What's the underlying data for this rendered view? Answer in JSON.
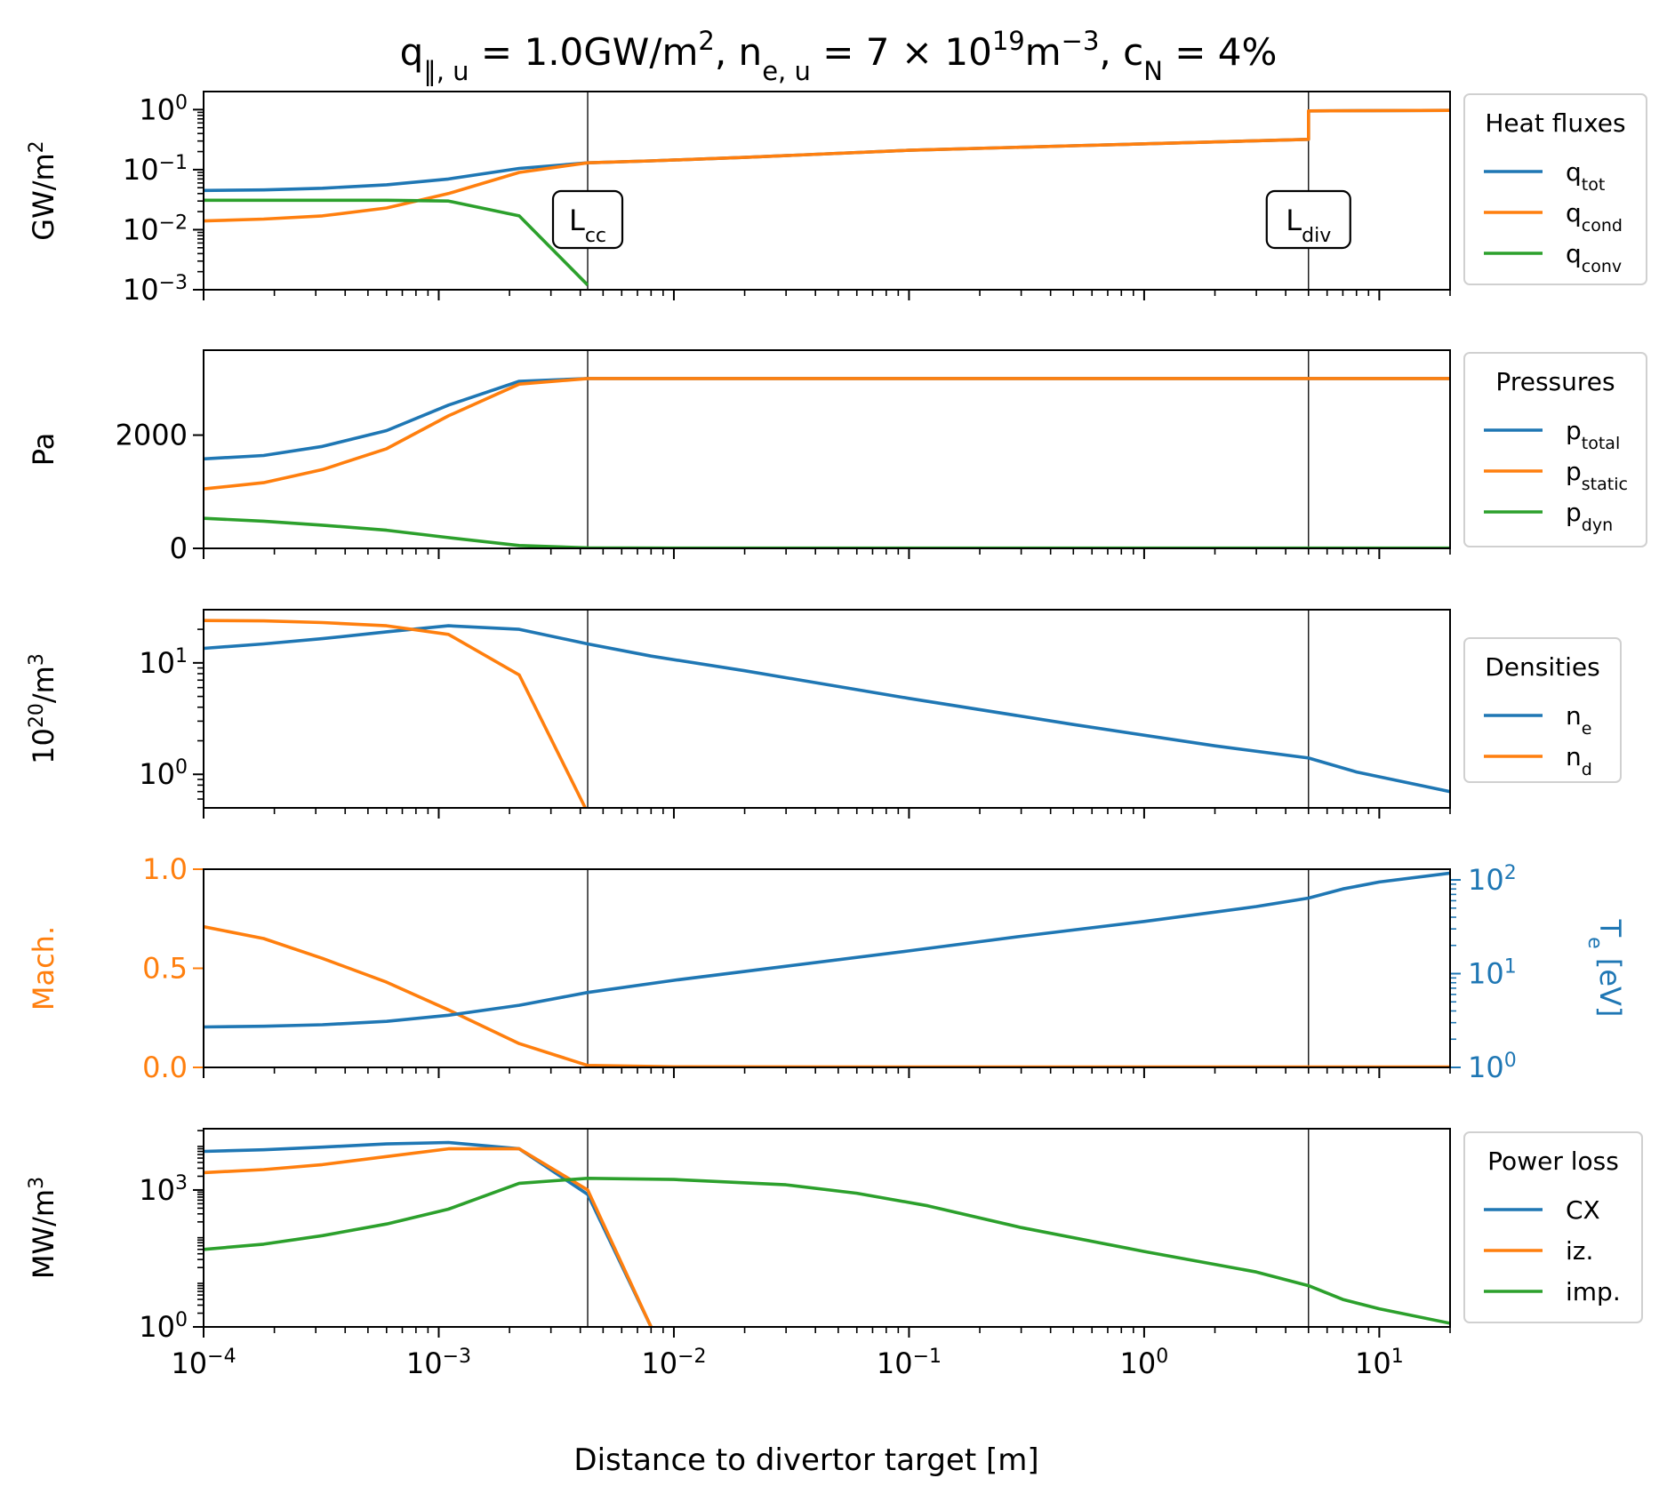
{
  "figure": {
    "title": "q‖,u = 1.0GW/m², ne,u = 7 × 10¹⁹m⁻³, cN = 4%",
    "title_parts": [
      {
        "t": "q"
      },
      {
        "t": "‖, u",
        "sub": true
      },
      {
        "t": " = 1.0GW/m"
      },
      {
        "t": "2",
        "sup": true
      },
      {
        "t": ", n"
      },
      {
        "t": "e, u",
        "sub": true
      },
      {
        "t": " = 7 × 10"
      },
      {
        "t": "19",
        "sup": true
      },
      {
        "t": "m"
      },
      {
        "t": "−3",
        "sup": true
      },
      {
        "t": ", c"
      },
      {
        "t": "N",
        "sub": true
      },
      {
        "t": " = 4%"
      }
    ],
    "xlabel": "Distance to divertor target [m]",
    "x_ticks": [
      {
        "v": 0.0001,
        "base": "10",
        "exp": "−4"
      },
      {
        "v": 0.001,
        "base": "10",
        "exp": "−3"
      },
      {
        "v": 0.01,
        "base": "10",
        "exp": "−2"
      },
      {
        "v": 0.1,
        "base": "10",
        "exp": "−1"
      },
      {
        "v": 1,
        "base": "10",
        "exp": "0"
      },
      {
        "v": 10,
        "base": "10",
        "exp": "1"
      }
    ],
    "xlim": [
      0.0001,
      20
    ],
    "x_scale": "log",
    "vlines": [
      0.0043,
      5.0
    ],
    "annotations": [
      {
        "base": "L",
        "sub": "cc",
        "x": 0.0043
      },
      {
        "base": "L",
        "sub": "div",
        "x": 5.0
      }
    ],
    "colors": {
      "blue": "#1f77b4",
      "orange": "#ff7f0e",
      "green": "#2ca02c",
      "black": "#000000"
    }
  },
  "chart_data": [
    {
      "type": "line",
      "ylabel": "GW/m²",
      "ylabel_parts": [
        {
          "t": "GW/m"
        },
        {
          "t": "2",
          "sup": true
        }
      ],
      "y_scale": "log",
      "ylim": [
        0.001,
        2
      ],
      "y_ticks": [
        {
          "v": 1,
          "base": "10",
          "exp": "0"
        },
        {
          "v": 0.1,
          "base": "10",
          "exp": "−1"
        },
        {
          "v": 0.01,
          "base": "10",
          "exp": "−2"
        },
        {
          "v": 0.001,
          "base": "10",
          "exp": "−3"
        }
      ],
      "legend": {
        "title": "Heat fluxes",
        "placement": "right"
      },
      "series": [
        {
          "name": "q_tot",
          "label_base": "q",
          "label_sub": "tot",
          "color": "#1f77b4",
          "x": [
            0.0001,
            0.00018,
            0.00032,
            0.0006,
            0.0011,
            0.0022,
            0.0043,
            0.008,
            0.02,
            0.1,
            0.5,
            2.0,
            5.0,
            5.0001,
            20
          ],
          "y": [
            0.045,
            0.046,
            0.049,
            0.056,
            0.07,
            0.105,
            0.13,
            0.14,
            0.16,
            0.21,
            0.25,
            0.29,
            0.32,
            0.95,
            0.97
          ]
        },
        {
          "name": "q_cond",
          "label_base": "q",
          "label_sub": "cond",
          "color": "#ff7f0e",
          "x": [
            0.0001,
            0.00018,
            0.00032,
            0.0006,
            0.0011,
            0.0022,
            0.0043,
            0.008,
            0.02,
            0.1,
            0.5,
            2.0,
            5.0,
            5.0001,
            20
          ],
          "y": [
            0.014,
            0.015,
            0.017,
            0.023,
            0.04,
            0.09,
            0.13,
            0.14,
            0.16,
            0.21,
            0.25,
            0.29,
            0.32,
            0.95,
            0.97
          ]
        },
        {
          "name": "q_conv",
          "label_base": "q",
          "label_sub": "conv",
          "color": "#2ca02c",
          "x": [
            0.0001,
            0.00018,
            0.00032,
            0.0006,
            0.0011,
            0.0022,
            0.0043
          ],
          "y": [
            0.031,
            0.031,
            0.031,
            0.031,
            0.03,
            0.017,
            0.0012
          ]
        }
      ]
    },
    {
      "type": "line",
      "ylabel": "Pa",
      "ylabel_parts": [
        {
          "t": "Pa"
        }
      ],
      "y_scale": "linear",
      "ylim": [
        0,
        3500
      ],
      "y_ticks": [
        {
          "v": 2000,
          "label": "2000"
        },
        {
          "v": 0,
          "label": "0"
        }
      ],
      "legend": {
        "title": "Pressures",
        "placement": "right"
      },
      "series": [
        {
          "name": "p_total",
          "label_base": "p",
          "label_sub": "total",
          "color": "#1f77b4",
          "x": [
            0.0001,
            0.00018,
            0.00032,
            0.0006,
            0.0011,
            0.0022,
            0.0043,
            0.01,
            0.1,
            1,
            5,
            20
          ],
          "y": [
            1580,
            1640,
            1800,
            2080,
            2530,
            2950,
            3000,
            3000,
            3000,
            3000,
            3000,
            3000
          ]
        },
        {
          "name": "p_static",
          "label_base": "p",
          "label_sub": "static",
          "color": "#ff7f0e",
          "x": [
            0.0001,
            0.00018,
            0.00032,
            0.0006,
            0.0011,
            0.0022,
            0.0043,
            0.01,
            0.1,
            1,
            5,
            20
          ],
          "y": [
            1050,
            1160,
            1390,
            1760,
            2340,
            2900,
            3000,
            3000,
            3000,
            3000,
            3000,
            3000
          ]
        },
        {
          "name": "p_dyn",
          "label_base": "p",
          "label_sub": "dyn",
          "color": "#2ca02c",
          "x": [
            0.0001,
            0.00018,
            0.00032,
            0.0006,
            0.0011,
            0.0022,
            0.0043,
            0.01,
            0.1,
            1,
            5,
            20
          ],
          "y": [
            530,
            480,
            410,
            320,
            190,
            50,
            10,
            5,
            5,
            5,
            5,
            5
          ]
        }
      ]
    },
    {
      "type": "line",
      "ylabel": "10²⁰/m³",
      "ylabel_parts": [
        {
          "t": "10"
        },
        {
          "t": "20",
          "sup": true
        },
        {
          "t": "/m"
        },
        {
          "t": "3",
          "sup": true
        }
      ],
      "y_scale": "log",
      "ylim": [
        0.5,
        30
      ],
      "y_ticks": [
        {
          "v": 10,
          "base": "10",
          "exp": "1"
        },
        {
          "v": 1,
          "base": "10",
          "exp": "0"
        }
      ],
      "legend": {
        "title": "Densities",
        "placement": "right"
      },
      "series": [
        {
          "name": "n_e",
          "label_base": "n",
          "label_sub": "e",
          "color": "#1f77b4",
          "x": [
            0.0001,
            0.00018,
            0.00032,
            0.0006,
            0.0011,
            0.0022,
            0.0043,
            0.008,
            0.02,
            0.1,
            0.5,
            2.0,
            5.0,
            8.0,
            20
          ],
          "y": [
            13.5,
            14.8,
            16.5,
            19.0,
            21.5,
            20.0,
            14.8,
            11.5,
            8.5,
            4.8,
            2.8,
            1.8,
            1.4,
            1.05,
            0.7
          ]
        },
        {
          "name": "n_d",
          "label_base": "n",
          "label_sub": "d",
          "color": "#ff7f0e",
          "x": [
            0.0001,
            0.00018,
            0.00032,
            0.0006,
            0.0011,
            0.0022,
            0.0042
          ],
          "y": [
            24.0,
            23.8,
            23.0,
            21.5,
            18.0,
            7.8,
            0.5
          ]
        }
      ]
    },
    {
      "type": "line",
      "ylabel": "Mach.",
      "ylabel_parts": [
        {
          "t": "Mach."
        }
      ],
      "y_scale": "linear",
      "ylim": [
        0,
        1
      ],
      "y_ticks": [
        {
          "v": 1.0,
          "label": "1.0"
        },
        {
          "v": 0.5,
          "label": "0.5"
        },
        {
          "v": 0.0,
          "label": "0.0"
        }
      ],
      "y2label": "Te [eV]",
      "y2label_parts": [
        {
          "t": "T"
        },
        {
          "t": "e",
          "sub": true
        },
        {
          "t": " [eV]"
        }
      ],
      "y2_scale": "log",
      "y2lim": [
        1,
        130
      ],
      "y2_ticks": [
        {
          "v": 100,
          "base": "10",
          "exp": "2"
        },
        {
          "v": 10,
          "base": "10",
          "exp": "1"
        },
        {
          "v": 1,
          "base": "10",
          "exp": "0"
        }
      ],
      "legend": null,
      "series": [
        {
          "name": "Mach",
          "axis": "left",
          "color": "#ff7f0e",
          "x": [
            0.0001,
            0.00018,
            0.00032,
            0.0006,
            0.0011,
            0.0022,
            0.0043,
            0.01,
            0.1,
            1,
            5,
            20
          ],
          "y": [
            0.71,
            0.65,
            0.55,
            0.43,
            0.29,
            0.12,
            0.01,
            0.003,
            0.002,
            0.002,
            0.002,
            0.002
          ]
        },
        {
          "name": "Te",
          "axis": "right",
          "color": "#1f77b4",
          "x": [
            0.0001,
            0.00018,
            0.00032,
            0.0006,
            0.0011,
            0.0022,
            0.0043,
            0.01,
            0.03,
            0.1,
            0.3,
            1.0,
            3.0,
            5.0,
            7.0,
            10.0,
            20
          ],
          "y": [
            2.7,
            2.75,
            2.85,
            3.1,
            3.6,
            4.6,
            6.3,
            8.5,
            12.0,
            17.5,
            25.0,
            36.0,
            52.0,
            64.0,
            80.0,
            95.0,
            118.0
          ]
        }
      ]
    },
    {
      "type": "line",
      "ylabel": "MW/m³",
      "ylabel_parts": [
        {
          "t": "MW/m"
        },
        {
          "t": "3",
          "sup": true
        }
      ],
      "y_scale": "log",
      "ylim": [
        1,
        22000
      ],
      "y_ticks": [
        {
          "v": 1000,
          "base": "10",
          "exp": "3"
        },
        {
          "v": 1,
          "base": "10",
          "exp": "0"
        }
      ],
      "legend": {
        "title": "Power loss",
        "placement": "right"
      },
      "series": [
        {
          "name": "CX",
          "label_base": "CX",
          "label_sub": "",
          "color": "#1f77b4",
          "x": [
            0.0001,
            0.00018,
            0.00032,
            0.0006,
            0.0011,
            0.0022,
            0.0043,
            0.008
          ],
          "y": [
            7000,
            7600,
            8700,
            10200,
            11000,
            8000,
            800,
            1
          ]
        },
        {
          "name": "iz.",
          "label_base": "iz.",
          "label_sub": "",
          "color": "#ff7f0e",
          "x": [
            0.0001,
            0.00018,
            0.00032,
            0.0006,
            0.0011,
            0.0022,
            0.0043,
            0.008
          ],
          "y": [
            2400,
            2800,
            3600,
            5400,
            8000,
            8000,
            1000,
            1
          ]
        },
        {
          "name": "imp.",
          "label_base": "imp.",
          "label_sub": "",
          "color": "#2ca02c",
          "x": [
            0.0001,
            0.00018,
            0.00032,
            0.0006,
            0.0011,
            0.0022,
            0.0043,
            0.01,
            0.03,
            0.06,
            0.12,
            0.3,
            1.0,
            3.0,
            5.0,
            7.0,
            10.0,
            20
          ],
          "y": [
            50,
            65,
            100,
            180,
            380,
            1400,
            1800,
            1700,
            1300,
            850,
            450,
            150,
            45,
            16,
            8,
            4,
            2.5,
            1.2
          ]
        }
      ]
    }
  ]
}
